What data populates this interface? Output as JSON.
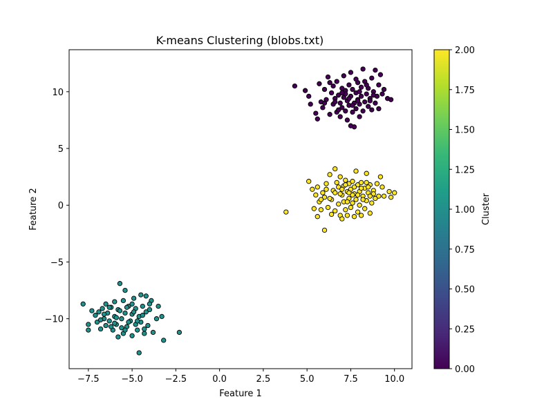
{
  "chart_data": {
    "type": "scatter",
    "title": "K-means Clustering (blobs.txt)",
    "xlabel": "Feature 1",
    "ylabel": "Feature 2",
    "xlim": [
      -8.6,
      11.0
    ],
    "ylim": [
      -14.4,
      13.7
    ],
    "xticks": [
      -7.5,
      -5.0,
      -2.5,
      0.0,
      2.5,
      5.0,
      7.5,
      10.0
    ],
    "xtick_labels": [
      "−7.5",
      "−5.0",
      "−2.5",
      "0.0",
      "2.5",
      "5.0",
      "7.5",
      "10.0"
    ],
    "yticks": [
      -10,
      -5,
      0,
      5,
      10
    ],
    "ytick_labels": [
      "−10",
      "−5",
      "0",
      "5",
      "10"
    ],
    "grid": false,
    "legend": "none",
    "marker": {
      "edgecolor": "#000000"
    },
    "colorbar": {
      "label": "Cluster",
      "colormap": "viridis",
      "range": [
        0.0,
        2.0
      ],
      "ticks": [
        0.0,
        0.25,
        0.5,
        0.75,
        1.0,
        1.25,
        1.5,
        1.75,
        2.0
      ],
      "tick_labels": [
        "0.00",
        "0.25",
        "0.50",
        "0.75",
        "1.00",
        "1.25",
        "1.50",
        "1.75",
        "2.00"
      ]
    },
    "series": [
      {
        "cluster": 0,
        "color": "#440154",
        "points": [
          [
            4.3,
            10.5
          ],
          [
            4.9,
            10.1
          ],
          [
            5.1,
            9.6
          ],
          [
            5.2,
            8.9
          ],
          [
            5.5,
            8.1
          ],
          [
            5.6,
            7.6
          ],
          [
            5.7,
            10.7
          ],
          [
            5.8,
            9.1
          ],
          [
            5.9,
            8.6
          ],
          [
            6.0,
            10.2
          ],
          [
            6.1,
            9.3
          ],
          [
            6.2,
            11.3
          ],
          [
            6.3,
            8.0
          ],
          [
            6.4,
            9.9
          ],
          [
            6.5,
            10.5
          ],
          [
            6.5,
            8.9
          ],
          [
            6.6,
            9.4
          ],
          [
            6.7,
            8.2
          ],
          [
            6.7,
            10.9
          ],
          [
            6.8,
            9.7
          ],
          [
            6.9,
            7.8
          ],
          [
            6.9,
            9.0
          ],
          [
            7.0,
            10.3
          ],
          [
            7.0,
            8.6
          ],
          [
            7.1,
            11.4
          ],
          [
            7.1,
            9.5
          ],
          [
            7.2,
            8.3
          ],
          [
            7.2,
            10.1
          ],
          [
            7.3,
            9.2
          ],
          [
            7.3,
            7.5
          ],
          [
            7.4,
            10.6
          ],
          [
            7.4,
            8.8
          ],
          [
            7.5,
            9.6
          ],
          [
            7.5,
            11.7
          ],
          [
            7.5,
            7.0
          ],
          [
            7.6,
            8.2
          ],
          [
            7.6,
            10.2
          ],
          [
            7.7,
            9.0
          ],
          [
            7.7,
            6.9
          ],
          [
            7.8,
            9.9
          ],
          [
            7.8,
            8.5
          ],
          [
            7.9,
            10.8
          ],
          [
            7.9,
            9.3
          ],
          [
            8.0,
            7.8
          ],
          [
            8.0,
            8.9
          ],
          [
            8.1,
            10.4
          ],
          [
            8.1,
            9.6
          ],
          [
            8.2,
            12.0
          ],
          [
            8.2,
            8.3
          ],
          [
            8.3,
            9.1
          ],
          [
            8.3,
            10.9
          ],
          [
            8.4,
            9.8
          ],
          [
            8.5,
            8.7
          ],
          [
            8.5,
            10.3
          ],
          [
            8.6,
            9.4
          ],
          [
            8.7,
            11.2
          ],
          [
            8.7,
            8.4
          ],
          [
            8.8,
            10.0
          ],
          [
            8.9,
            9.0
          ],
          [
            8.9,
            11.9
          ],
          [
            9.0,
            9.6
          ],
          [
            9.1,
            10.6
          ],
          [
            9.1,
            8.5
          ],
          [
            9.2,
            11.5
          ],
          [
            9.3,
            9.8
          ],
          [
            9.4,
            10.2
          ],
          [
            9.6,
            9.4
          ],
          [
            9.8,
            9.3
          ],
          [
            6.3,
            10.8
          ],
          [
            7.8,
            11.1
          ],
          [
            8.6,
            9.2
          ],
          [
            7.2,
            9.8
          ],
          [
            6.8,
            8.4
          ],
          [
            8.0,
            10.0
          ],
          [
            7.4,
            9.4
          ],
          [
            6.6,
            9.1
          ],
          [
            8.4,
            10.6
          ],
          [
            7.0,
            9.9
          ],
          [
            7.6,
            8.8
          ],
          [
            8.8,
            9.7
          ],
          [
            6.0,
            9.0
          ],
          [
            7.9,
            9.2
          ]
        ]
      },
      {
        "cluster": 1,
        "color": "#21918c",
        "points": [
          [
            -7.8,
            -8.7
          ],
          [
            -7.5,
            -10.5
          ],
          [
            -7.5,
            -11.0
          ],
          [
            -7.3,
            -9.3
          ],
          [
            -7.1,
            -9.7
          ],
          [
            -7.0,
            -10.3
          ],
          [
            -6.9,
            -9.4
          ],
          [
            -6.8,
            -10.9
          ],
          [
            -6.7,
            -9.1
          ],
          [
            -6.6,
            -10.0
          ],
          [
            -6.5,
            -8.7
          ],
          [
            -6.5,
            -10.6
          ],
          [
            -6.4,
            -9.5
          ],
          [
            -6.3,
            -10.2
          ],
          [
            -6.2,
            -9.0
          ],
          [
            -6.1,
            -11.0
          ],
          [
            -6.0,
            -8.5
          ],
          [
            -6.0,
            -9.8
          ],
          [
            -5.9,
            -10.5
          ],
          [
            -5.8,
            -9.2
          ],
          [
            -5.8,
            -11.6
          ],
          [
            -5.7,
            -6.9
          ],
          [
            -5.6,
            -10.0
          ],
          [
            -5.5,
            -8.4
          ],
          [
            -5.5,
            -11.3
          ],
          [
            -5.4,
            -7.5
          ],
          [
            -5.4,
            -9.5
          ],
          [
            -5.3,
            -10.7
          ],
          [
            -5.2,
            -8.9
          ],
          [
            -5.1,
            -10.2
          ],
          [
            -5.0,
            -9.6
          ],
          [
            -5.0,
            -11.5
          ],
          [
            -4.9,
            -8.2
          ],
          [
            -4.8,
            -10.5
          ],
          [
            -4.8,
            -9.1
          ],
          [
            -4.7,
            -11.0
          ],
          [
            -4.6,
            -9.8
          ],
          [
            -4.5,
            -7.9
          ],
          [
            -4.5,
            -10.3
          ],
          [
            -4.4,
            -8.9
          ],
          [
            -4.3,
            -11.3
          ],
          [
            -4.2,
            -9.4
          ],
          [
            -4.2,
            -8.0
          ],
          [
            -4.1,
            -10.6
          ],
          [
            -4.0,
            -9.2
          ],
          [
            -3.9,
            -8.4
          ],
          [
            -3.8,
            -11.2
          ],
          [
            -3.6,
            -10.0
          ],
          [
            -3.5,
            -8.9
          ],
          [
            -3.3,
            -9.8
          ],
          [
            -3.2,
            -11.9
          ],
          [
            -2.3,
            -11.2
          ],
          [
            -4.6,
            -13.0
          ],
          [
            -6.3,
            -9.0
          ],
          [
            -5.9,
            -9.9
          ],
          [
            -5.2,
            -10.3
          ],
          [
            -4.9,
            -9.4
          ],
          [
            -6.6,
            -9.6
          ],
          [
            -5.6,
            -10.8
          ],
          [
            -4.4,
            -9.7
          ],
          [
            -6.0,
            -10.4
          ],
          [
            -5.3,
            -9.0
          ],
          [
            -4.7,
            -10.2
          ],
          [
            -6.8,
            -10.1
          ],
          [
            -5.7,
            -9.3
          ],
          [
            -5.0,
            -8.7
          ],
          [
            -4.3,
            -10.9
          ],
          [
            -6.2,
            -10.7
          ],
          [
            -5.4,
            -11.0
          ],
          [
            -4.0,
            -8.7
          ]
        ]
      },
      {
        "cluster": 2,
        "color": "#fde725",
        "points": [
          [
            3.8,
            -0.6
          ],
          [
            5.1,
            2.1
          ],
          [
            5.3,
            1.4
          ],
          [
            5.4,
            -0.3
          ],
          [
            5.5,
            0.9
          ],
          [
            5.6,
            1.6
          ],
          [
            5.6,
            -1.0
          ],
          [
            5.7,
            0.3
          ],
          [
            5.8,
            -0.4
          ],
          [
            5.9,
            1.1
          ],
          [
            6.0,
            -2.2
          ],
          [
            6.0,
            0.7
          ],
          [
            6.1,
            1.9
          ],
          [
            6.2,
            -0.2
          ],
          [
            6.3,
            2.7
          ],
          [
            6.4,
            0.5
          ],
          [
            6.4,
            -0.8
          ],
          [
            6.5,
            1.3
          ],
          [
            6.6,
            3.2
          ],
          [
            6.6,
            -0.5
          ],
          [
            6.7,
            2.0
          ],
          [
            6.8,
            0.1
          ],
          [
            6.8,
            1.6
          ],
          [
            6.9,
            -0.9
          ],
          [
            6.9,
            2.5
          ],
          [
            7.0,
            0.9
          ],
          [
            7.0,
            -1.2
          ],
          [
            7.1,
            1.7
          ],
          [
            7.1,
            0.3
          ],
          [
            7.2,
            2.2
          ],
          [
            7.2,
            -0.4
          ],
          [
            7.3,
            1.2
          ],
          [
            7.3,
            -0.9
          ],
          [
            7.4,
            0.6
          ],
          [
            7.4,
            1.9
          ],
          [
            7.5,
            -0.2
          ],
          [
            7.5,
            1.4
          ],
          [
            7.6,
            2.1
          ],
          [
            7.6,
            0.2
          ],
          [
            7.7,
            -1.0
          ],
          [
            7.7,
            1.0
          ],
          [
            7.8,
            3.0
          ],
          [
            7.8,
            0.5
          ],
          [
            7.9,
            1.8
          ],
          [
            7.9,
            -0.6
          ],
          [
            8.0,
            1.2
          ],
          [
            8.0,
            0.0
          ],
          [
            8.1,
            2.0
          ],
          [
            8.1,
            -0.9
          ],
          [
            8.2,
            0.8
          ],
          [
            8.3,
            1.5
          ],
          [
            8.3,
            -0.3
          ],
          [
            8.4,
            2.8
          ],
          [
            8.4,
            0.4
          ],
          [
            8.5,
            1.1
          ],
          [
            8.6,
            -0.7
          ],
          [
            8.6,
            1.8
          ],
          [
            8.7,
            0.2
          ],
          [
            8.8,
            1.3
          ],
          [
            8.9,
            0.6
          ],
          [
            9.0,
            1.9
          ],
          [
            9.1,
            0.8
          ],
          [
            9.2,
            2.5
          ],
          [
            9.3,
            1.6
          ],
          [
            9.4,
            0.8
          ],
          [
            9.7,
            1.2
          ],
          [
            9.8,
            0.7
          ],
          [
            10.0,
            1.1
          ],
          [
            6.9,
            1.0
          ],
          [
            7.7,
            1.6
          ],
          [
            8.2,
            0.5
          ],
          [
            7.3,
            0.3
          ],
          [
            7.9,
            0.9
          ],
          [
            8.5,
            1.6
          ],
          [
            7.0,
            1.4
          ],
          [
            7.6,
            0.9
          ],
          [
            8.8,
            1.0
          ],
          [
            6.6,
            1.1
          ],
          [
            8.1,
            1.5
          ],
          [
            7.4,
            1.1
          ],
          [
            8.6,
            0.8
          ],
          [
            6.3,
            0.6
          ],
          [
            7.2,
            1.8
          ],
          [
            8.4,
            2.0
          ],
          [
            6.1,
            1.4
          ],
          [
            5.8,
            0.5
          ]
        ]
      }
    ]
  }
}
